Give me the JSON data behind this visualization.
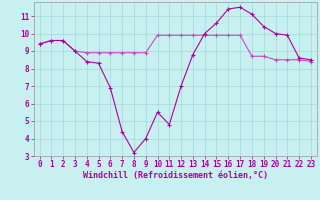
{
  "xlabel": "Windchill (Refroidissement éolien,°C)",
  "x": [
    0,
    1,
    2,
    3,
    4,
    5,
    6,
    7,
    8,
    9,
    10,
    11,
    12,
    13,
    14,
    15,
    16,
    17,
    18,
    19,
    20,
    21,
    22,
    23
  ],
  "line1": [
    9.4,
    9.6,
    9.6,
    9.0,
    8.4,
    8.3,
    6.9,
    4.4,
    3.2,
    4.0,
    5.5,
    4.8,
    7.0,
    8.8,
    10.0,
    10.6,
    11.4,
    11.5,
    11.1,
    10.4,
    10.0,
    9.9,
    8.6,
    8.5
  ],
  "line2": [
    9.4,
    9.6,
    9.6,
    9.0,
    8.9,
    8.9,
    8.9,
    8.9,
    8.9,
    8.9,
    9.9,
    9.9,
    9.9,
    9.9,
    9.9,
    9.9,
    9.9,
    9.9,
    8.7,
    8.7,
    8.5,
    8.5,
    8.5,
    8.4
  ],
  "line_color1": "#aa00aa",
  "line_color2": "#cc44cc",
  "bg_color": "#c8f0f0",
  "grid_color": "#a0d8d8",
  "ylim": [
    3,
    11.8
  ],
  "xlim": [
    -0.5,
    23.5
  ],
  "yticks": [
    3,
    4,
    5,
    6,
    7,
    8,
    9,
    10,
    11
  ],
  "xticks": [
    0,
    1,
    2,
    3,
    4,
    5,
    6,
    7,
    8,
    9,
    10,
    11,
    12,
    13,
    14,
    15,
    16,
    17,
    18,
    19,
    20,
    21,
    22,
    23
  ],
  "tick_fontsize": 5.5,
  "label_fontsize": 6.0,
  "marker_size": 2.0,
  "line_width": 0.8
}
